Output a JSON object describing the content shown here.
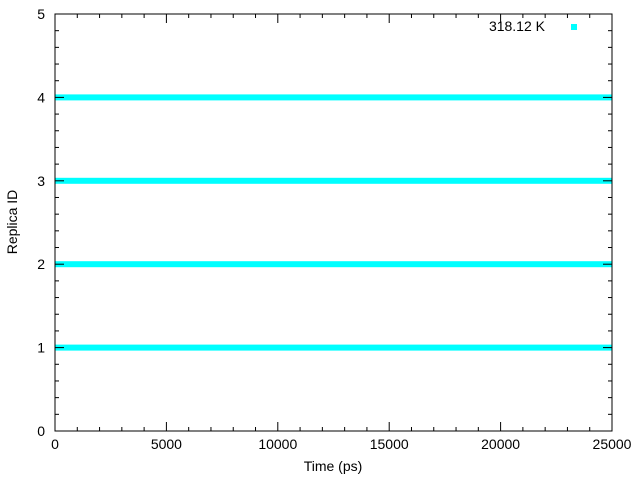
{
  "chart_data": {
    "type": "scatter",
    "title": "",
    "xlabel": "Time (ps)",
    "ylabel": "Replica ID",
    "xlim": [
      0,
      25000
    ],
    "ylim": [
      0,
      5
    ],
    "x_ticks": [
      0,
      5000,
      10000,
      15000,
      20000,
      25000
    ],
    "y_ticks": [
      0,
      1,
      2,
      3,
      4,
      5
    ],
    "grid": false,
    "legend_position": "top-right",
    "series": [
      {
        "name": "318.12 K",
        "color": "#00ffff",
        "marker": "square",
        "x_range": [
          0,
          25000
        ],
        "y_levels": [
          1,
          2,
          3,
          4
        ]
      }
    ]
  }
}
